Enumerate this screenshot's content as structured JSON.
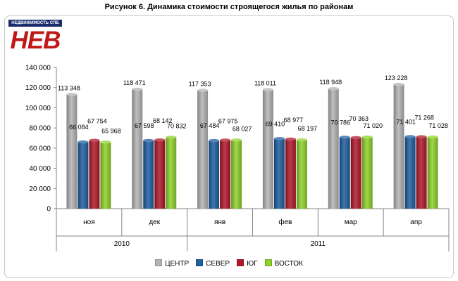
{
  "title": "Рисунок 6. Динамика стоимости строящегося жилья по районам",
  "logo": {
    "top_text": "НЕДВИЖИМОСТЬ СПБ",
    "main_text": "НЕВ"
  },
  "chart_data": {
    "type": "bar",
    "categories": [
      "ноя",
      "дек",
      "янв",
      "фев",
      "мар",
      "апр"
    ],
    "groups": [
      {
        "label": "2010",
        "categories": [
          "ноя",
          "дек"
        ]
      },
      {
        "label": "2011",
        "categories": [
          "янв",
          "фев",
          "мар",
          "апр"
        ]
      }
    ],
    "series": [
      {
        "name": "ЦЕНТР",
        "color": "#b4b4b4",
        "values": [
          113348,
          118471,
          117353,
          118011,
          118948,
          123228
        ],
        "labels": [
          "113 348",
          "118 471",
          "117 353",
          "118 011",
          "118 948",
          "123 228"
        ]
      },
      {
        "name": "СЕВЕР",
        "color": "#1f5fa0",
        "values": [
          66084,
          67598,
          67484,
          69410,
          70786,
          71401
        ],
        "labels": [
          "66 084",
          "67 598",
          "67 484",
          "69 410",
          "70 786",
          "71 401"
        ]
      },
      {
        "name": "ЮГ",
        "color": "#b0182a",
        "values": [
          67754,
          68142,
          67975,
          68977,
          70363,
          71268
        ],
        "labels": [
          "67 754",
          "68 142",
          "67 975",
          "68 977",
          "70 363",
          "71 268"
        ]
      },
      {
        "name": "ВОСТОК",
        "color": "#8fd12b",
        "values": [
          65968,
          70832,
          68027,
          68197,
          71020,
          71028
        ],
        "labels": [
          "65 968",
          "70 832",
          "68 027",
          "68 197",
          "71 020",
          "71 028"
        ]
      }
    ],
    "yticks": [
      "0",
      "20 000",
      "40 000",
      "60 000",
      "80 000",
      "100 000",
      "120 000",
      "140 000"
    ],
    "ylim": [
      0,
      140000
    ],
    "xlabel": "",
    "ylabel": "",
    "grid": false,
    "legend": "bottom"
  }
}
